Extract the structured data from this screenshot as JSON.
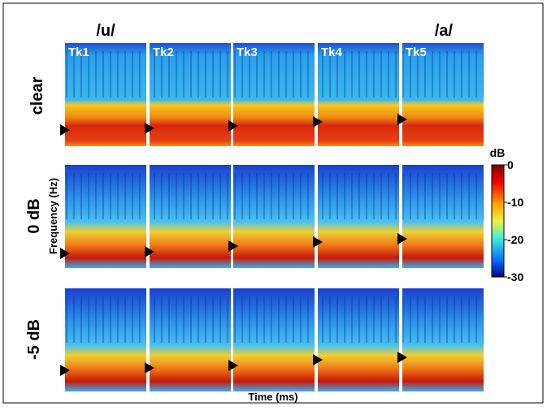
{
  "columns": {
    "first": "/u/",
    "last": "/a/"
  },
  "panel_labels": [
    "Tk1",
    "Tk2",
    "Tk3",
    "Tk4",
    "Tk5"
  ],
  "rows": [
    "clear",
    "0 dB",
    "-5 dB"
  ],
  "y_axis_label": "Frequency (Hz)",
  "x_axis_label": "Time (ms)",
  "colorbar": {
    "label": "dB",
    "lim": [
      -30,
      0
    ],
    "ticks": [
      0,
      -10,
      -20,
      -30
    ]
  }
}
